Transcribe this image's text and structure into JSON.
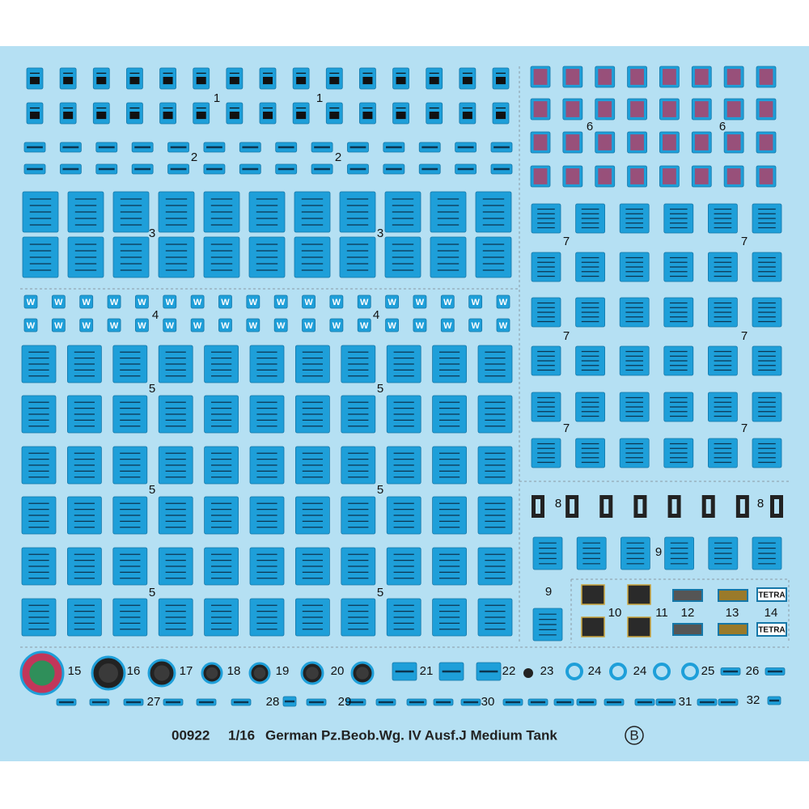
{
  "sheet": {
    "code": "00922",
    "scale": "1/16",
    "title": "German Pz.Beob.Wg. IV Ausf.J Medium Tank",
    "variant": "B"
  },
  "labels": [
    "1",
    "1",
    "2",
    "2",
    "3",
    "3",
    "4",
    "4",
    "5",
    "5",
    "5",
    "5",
    "5",
    "5",
    "6",
    "6",
    "7",
    "7",
    "7",
    "7",
    "7",
    "7",
    "8",
    "8",
    "9",
    "9",
    "10",
    "11",
    "12",
    "13",
    "14",
    "15",
    "16",
    "17",
    "18",
    "19",
    "20",
    "21",
    "22",
    "23",
    "24",
    "24",
    "25",
    "26",
    "27",
    "28",
    "29",
    "30",
    "31",
    "32"
  ],
  "decal_texts": {
    "w_mark": "W",
    "tetra": "TETRA"
  }
}
